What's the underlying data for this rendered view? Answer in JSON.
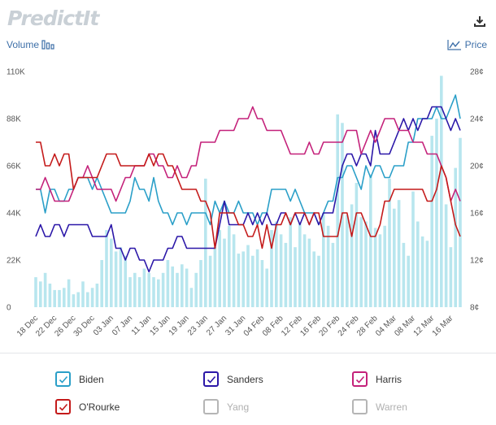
{
  "header": {
    "logo": "PredictIt",
    "volume_label": "Volume",
    "price_label": "Price"
  },
  "colors": {
    "Biden": "#2a9fc8",
    "Sanders": "#2b17a8",
    "Harris": "#c4217a",
    "ORourke": "#c41a1a",
    "volume": "#b8e6ee",
    "off": "#b5b5b5"
  },
  "legend": [
    {
      "name": "Biden",
      "checked": true
    },
    {
      "name": "Sanders",
      "checked": true
    },
    {
      "name": "Harris",
      "checked": true
    },
    {
      "name": "O'Rourke",
      "checked": true
    },
    {
      "name": "Yang",
      "checked": false
    },
    {
      "name": "Warren",
      "checked": false
    }
  ],
  "chart_data": {
    "type": "line",
    "left_axis": {
      "label": "",
      "ticks": [
        "0",
        "22K",
        "44K",
        "66K",
        "88K",
        "110K"
      ],
      "range": [
        0,
        110000
      ]
    },
    "right_axis": {
      "label": "",
      "ticks": [
        "8¢",
        "12¢",
        "16¢",
        "20¢",
        "24¢",
        "28¢"
      ],
      "range": [
        8,
        28
      ]
    },
    "x_ticks": [
      "18 Dec",
      "22 Dec",
      "26 Dec",
      "30 Dec",
      "03 Jan",
      "07 Jan",
      "11 Jan",
      "15 Jan",
      "19 Jan",
      "23 Jan",
      "27 Jan",
      "31 Jan",
      "04 Feb",
      "08 Feb",
      "12 Feb",
      "16 Feb",
      "20 Feb",
      "24 Feb",
      "28 Feb",
      "04 Mar",
      "08 Mar",
      "12 Mar",
      "16 Mar"
    ],
    "days": 91,
    "volume": [
      14000,
      12000,
      16000,
      11000,
      8000,
      8000,
      9000,
      13000,
      6000,
      7000,
      12000,
      7000,
      9000,
      11000,
      22000,
      36000,
      32000,
      26000,
      28000,
      24000,
      14000,
      16000,
      14000,
      18000,
      16000,
      14000,
      13000,
      16000,
      22000,
      19000,
      16000,
      20000,
      18000,
      9000,
      16000,
      22000,
      60000,
      24000,
      28000,
      36000,
      32000,
      38000,
      34000,
      25000,
      26000,
      29000,
      24000,
      27000,
      22000,
      18000,
      36000,
      40000,
      34000,
      30000,
      42000,
      28000,
      39000,
      34000,
      32000,
      26000,
      24000,
      44000,
      38000,
      30000,
      90000,
      86000,
      43000,
      48000,
      58000,
      42000,
      40000,
      62000,
      37000,
      34000,
      38000,
      60000,
      46000,
      50000,
      30000,
      24000,
      54000,
      40000,
      33000,
      31000,
      80000,
      88000,
      108000,
      48000,
      28000,
      65000,
      79000
    ],
    "series": [
      {
        "name": "Biden",
        "values": [
          18,
          18,
          16,
          18,
          18,
          17,
          17,
          18,
          18,
          19,
          19,
          19,
          18,
          19,
          18,
          17,
          16,
          16,
          16,
          16,
          17,
          19,
          18,
          18,
          17,
          19,
          17,
          16,
          16,
          15,
          16,
          16,
          15,
          16,
          16,
          16,
          16,
          15,
          17,
          16,
          17,
          16,
          16,
          17,
          16,
          16,
          16,
          15,
          16,
          16,
          18,
          18,
          18,
          18,
          17,
          18,
          17,
          16,
          16,
          16,
          15,
          16,
          17,
          17,
          19,
          19,
          20,
          20,
          19,
          18,
          20,
          19,
          20,
          20,
          19,
          19,
          20,
          20,
          20,
          22,
          22,
          24,
          24,
          24,
          24,
          25,
          24,
          24,
          25,
          26,
          24
        ]
      },
      {
        "name": "Sanders",
        "values": [
          14,
          15,
          14,
          14,
          15,
          15,
          14,
          15,
          15,
          15,
          15,
          15,
          14,
          14,
          14,
          14,
          15,
          13,
          13,
          12,
          13,
          13,
          12,
          12,
          11,
          12,
          12,
          12,
          13,
          13,
          14,
          14,
          13,
          13,
          13,
          13,
          13,
          13,
          13,
          15,
          17,
          15,
          15,
          15,
          15,
          16,
          15,
          16,
          15,
          16,
          15,
          15,
          16,
          16,
          15,
          16,
          15,
          16,
          15,
          16,
          15,
          16,
          16,
          16,
          18,
          20,
          21,
          21,
          20,
          21,
          21,
          20,
          23,
          21,
          21,
          21,
          22,
          23,
          24,
          23,
          24,
          23,
          24,
          24,
          25,
          25,
          25,
          24,
          23,
          24,
          23
        ]
      },
      {
        "name": "Harris",
        "values": [
          18,
          18,
          19,
          18,
          17,
          17,
          17,
          17,
          18,
          19,
          19,
          20,
          19,
          18,
          18,
          18,
          18,
          17,
          18,
          19,
          19,
          20,
          20,
          20,
          21,
          21,
          20,
          20,
          19,
          19,
          20,
          19,
          19,
          20,
          20,
          22,
          22,
          22,
          22,
          23,
          23,
          23,
          23,
          24,
          24,
          24,
          25,
          24,
          24,
          23,
          23,
          23,
          23,
          22,
          21,
          21,
          21,
          21,
          22,
          21,
          21,
          22,
          22,
          22,
          22,
          22,
          23,
          23,
          23,
          21,
          22,
          23,
          22,
          23,
          24,
          24,
          24,
          23,
          23,
          23,
          22,
          22,
          22,
          21,
          21,
          21,
          20,
          19,
          17,
          18,
          17
        ]
      },
      {
        "name": "O'Rourke",
        "values": [
          22,
          22,
          20,
          20,
          21,
          20,
          21,
          21,
          18,
          19,
          19,
          19,
          19,
          19,
          20,
          21,
          21,
          21,
          20,
          20,
          20,
          20,
          20,
          20,
          21,
          20,
          21,
          21,
          20,
          20,
          19,
          18,
          18,
          18,
          18,
          17,
          17,
          16,
          13,
          16,
          16,
          16,
          16,
          15,
          15,
          14,
          14,
          15,
          13,
          15,
          13,
          15,
          15,
          16,
          15,
          16,
          16,
          16,
          15,
          16,
          16,
          14,
          14,
          14,
          14,
          16,
          16,
          14,
          16,
          16,
          15,
          14,
          14,
          15,
          17,
          17,
          18,
          18,
          18,
          18,
          18,
          18,
          18,
          17,
          17,
          18,
          20,
          19,
          17,
          15,
          14
        ]
      }
    ]
  }
}
